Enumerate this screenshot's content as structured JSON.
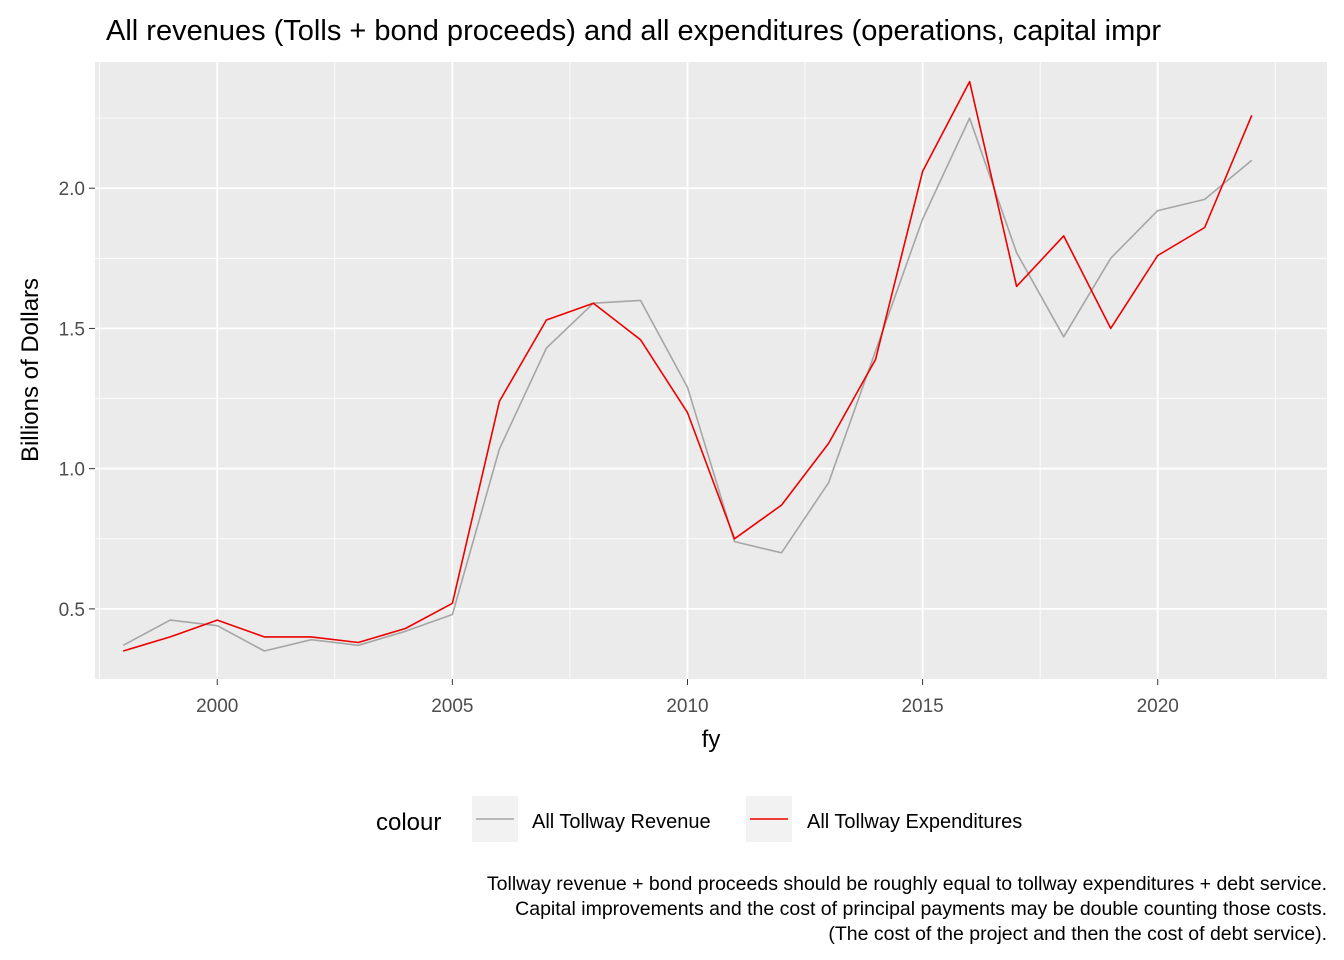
{
  "chart_data": {
    "type": "line",
    "title": "All revenues (Tolls + bond proceeds) and all expenditures (operations, capital impr",
    "xlabel": "fy",
    "ylabel": "Billions of Dollars",
    "xlim": [
      1997.4,
      2023.6
    ],
    "ylim": [
      0.25,
      2.45
    ],
    "x_ticks": [
      2000,
      2005,
      2010,
      2015,
      2020
    ],
    "x_tick_labels": [
      "2000",
      "2005",
      "2010",
      "2015",
      "2020"
    ],
    "x_minor_ticks": [
      1997.5,
      2002.5,
      2007.5,
      2012.5,
      2017.5,
      2022.5
    ],
    "y_ticks": [
      0.5,
      1.0,
      1.5,
      2.0
    ],
    "y_tick_labels": [
      "0.5",
      "1.0",
      "1.5",
      "2.0"
    ],
    "y_minor_ticks": [
      0.75,
      1.25,
      1.75,
      2.25
    ],
    "grid": true,
    "legend_title": "colour",
    "legend_position": "bottom",
    "x": [
      1998,
      1999,
      2000,
      2001,
      2002,
      2003,
      2004,
      2005,
      2006,
      2007,
      2008,
      2009,
      2010,
      2011,
      2012,
      2013,
      2014,
      2015,
      2016,
      2017,
      2018,
      2019,
      2020,
      2021,
      2022
    ],
    "series": [
      {
        "name": "All Tollway Revenue",
        "color": "#a6a6a6",
        "values": [
          0.37,
          0.46,
          0.44,
          0.35,
          0.39,
          0.37,
          0.42,
          0.48,
          1.07,
          1.43,
          1.59,
          1.6,
          1.29,
          0.74,
          0.7,
          0.95,
          1.42,
          1.89,
          2.25,
          1.77,
          1.47,
          1.75,
          1.92,
          1.96,
          2.1
        ]
      },
      {
        "name": "All Tollway Expenditures",
        "color": "#ee0000",
        "values": [
          0.35,
          0.4,
          0.46,
          0.4,
          0.4,
          0.38,
          0.43,
          0.52,
          1.24,
          1.53,
          1.59,
          1.46,
          1.2,
          0.75,
          0.87,
          1.09,
          1.39,
          2.06,
          2.38,
          1.65,
          1.83,
          1.5,
          1.76,
          1.86,
          2.26
        ]
      }
    ],
    "caption": [
      "Tollway revenue + bond proceeds should be roughly equal to tollway expenditures + debt service.",
      "Capital improvements and the cost of principal payments may be double counting those costs.",
      "(The cost of the project and then the cost of debt service)."
    ],
    "panel_background": "#ebebeb",
    "grid_color": "#ffffff",
    "tick_color": "#333333"
  }
}
